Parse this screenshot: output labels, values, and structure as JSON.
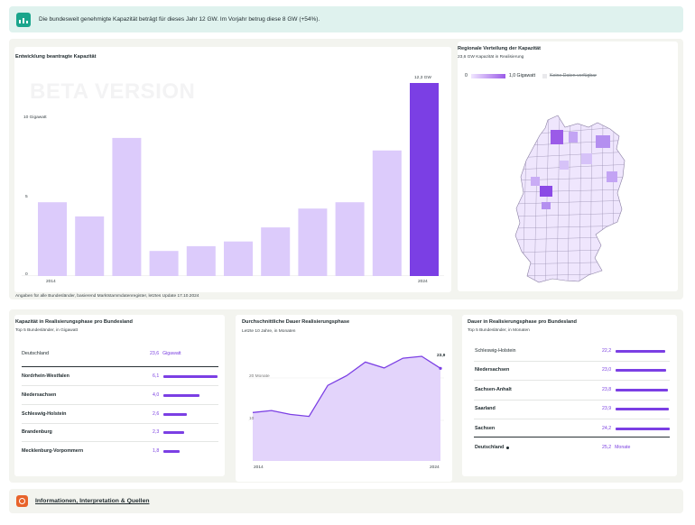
{
  "banner": {
    "text": "Die bundesweit genehmigte Kapazität beträgt für dieses Jahr 12 GW. Im Vorjahr betrug diese 8 GW (+54%).",
    "icon": "bar-chart-icon",
    "accent": "#1aa58c"
  },
  "capacity_chart": {
    "title": "Entwicklung beantragte Kapazität",
    "watermark": "BETA VERSION",
    "footnote": "Angaben für alle Bundesländer, basierend Marktstammdatenregister, letztes Update 17.10.2024",
    "last_label": "12,3 GW",
    "y_unit_label": "10 Gigawatt",
    "y_ticks": [
      "0",
      "5"
    ],
    "x_ticks": [
      "2014",
      "2024"
    ]
  },
  "chart_data": [
    {
      "type": "bar",
      "title": "Entwicklung beantragte Kapazität",
      "x": [
        2014,
        2015,
        2016,
        2017,
        2018,
        2019,
        2020,
        2021,
        2022,
        2023,
        2024
      ],
      "values": [
        4.7,
        3.8,
        8.8,
        1.6,
        1.9,
        2.2,
        3.1,
        4.3,
        4.7,
        8.0,
        12.3
      ],
      "ylim": [
        0,
        12.3
      ],
      "y_ticks": [
        0,
        5,
        10
      ],
      "colors": {
        "bar": "#dccbfb",
        "highlight": "#7b3fe4"
      }
    },
    {
      "type": "area",
      "title": "Durchschnittliche Dauer Realisierungsphase",
      "x": [
        2014,
        2015,
        2016,
        2017,
        2018,
        2019,
        2020,
        2021,
        2022,
        2023,
        2024
      ],
      "values": [
        12.5,
        13.0,
        12.0,
        11.5,
        19.5,
        22.0,
        25.5,
        24.0,
        26.5,
        27.0,
        23.9
      ],
      "ylim": [
        0,
        27
      ],
      "y_ticks": [
        10,
        20
      ],
      "color": "#7b3fe4"
    }
  ],
  "map": {
    "title": "Regionale Verteilung der Kapazität",
    "subtitle": "23,6 GW Kapazität in Realisierung",
    "legend_min": "0",
    "legend_max": "1,0 Gigawatt",
    "legend_nodata": "Keine Daten verfügbar"
  },
  "states_table": {
    "title": "Kapazität in Realisierungsphase pro Bundesland",
    "subtitle": "Top 5 Bundesländer, in Gigawatt",
    "total_label": "Deutschland",
    "total_value": "23,6",
    "total_unit": "Gigawatt",
    "rows": [
      {
        "label": "Nordrhein-Westfalen",
        "value": "6,1",
        "frac": 1.0
      },
      {
        "label": "Niedersachsen",
        "value": "4,0",
        "frac": 0.66
      },
      {
        "label": "Schleswig-Holstein",
        "value": "2,6",
        "frac": 0.43
      },
      {
        "label": "Brandenburg",
        "value": "2,3",
        "frac": 0.38
      },
      {
        "label": "Mecklenburg-Vorpommern",
        "value": "1,8",
        "frac": 0.3
      }
    ]
  },
  "duration_chart": {
    "title": "Durchschnittliche Dauer Realisierungsphase",
    "subtitle": "Letzte 10 Jahre, in Monaten",
    "y_label_20": "20 Monate",
    "y_label_10": "10",
    "last_value": "23,9",
    "x_start": "2014",
    "x_end": "2024"
  },
  "duration_table": {
    "title": "Dauer in Realisierungsphase pro Bundesland",
    "subtitle": "Top 5 Bundesländer, in Monaten",
    "rows": [
      {
        "label": "Schleswig-Holstein",
        "value": "22,2",
        "frac": 0.91
      },
      {
        "label": "Niedersachsen",
        "value": "23,0",
        "frac": 0.94
      },
      {
        "label": "Sachsen-Anhalt",
        "value": "23,8",
        "frac": 0.97
      },
      {
        "label": "Saarland",
        "value": "23,9",
        "frac": 0.98
      },
      {
        "label": "Sachsen",
        "value": "24,2",
        "frac": 1.0
      }
    ],
    "total_label": "Deutschland",
    "total_value": "25,2",
    "total_unit": "Monate"
  },
  "info": {
    "text": "Informationen, Interpretation & Quellen",
    "icon": "info-circle-icon",
    "accent": "#e8632b"
  }
}
